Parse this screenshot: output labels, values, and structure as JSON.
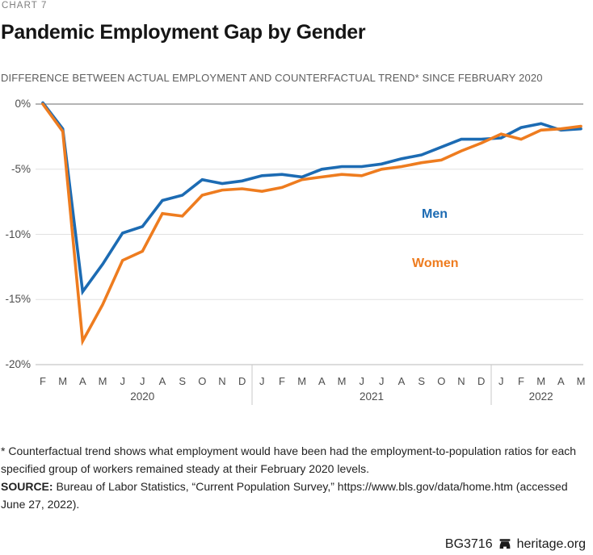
{
  "page": {
    "kicker": "CHART 7",
    "title": "Pandemic Employment Gap by Gender",
    "subtitle": "DIFFERENCE BETWEEN ACTUAL EMPLOYMENT AND COUNTERFACTUAL TREND* SINCE FEBRUARY 2020"
  },
  "chart_data": {
    "type": "line",
    "x_tick_letters": [
      "F",
      "M",
      "A",
      "M",
      "J",
      "J",
      "A",
      "S",
      "O",
      "N",
      "D",
      "J",
      "F",
      "M",
      "A",
      "M",
      "J",
      "J",
      "A",
      "S",
      "O",
      "N",
      "D",
      "J",
      "F",
      "M",
      "A",
      "M"
    ],
    "year_groups": [
      {
        "label": "2020",
        "from_index": 0,
        "to_index": 10
      },
      {
        "label": "2021",
        "from_index": 11,
        "to_index": 22
      },
      {
        "label": "2022",
        "from_index": 23,
        "to_index": 27
      }
    ],
    "yticks": [
      0,
      -5,
      -10,
      -15,
      -20
    ],
    "ytick_labels": [
      "0%",
      "-5%",
      "-10%",
      "-15%",
      "-20%"
    ],
    "ylim": [
      -20,
      0.5
    ],
    "grid": true,
    "legend_position": "inline-right",
    "series": [
      {
        "name": "Men",
        "color": "#1c6bb3",
        "values": [
          0.1,
          -1.9,
          -14.4,
          -12.3,
          -9.9,
          -9.4,
          -7.4,
          -7.0,
          -5.8,
          -6.1,
          -5.9,
          -5.5,
          -5.4,
          -5.6,
          -5.0,
          -4.8,
          -4.8,
          -4.6,
          -4.2,
          -3.9,
          -3.3,
          -2.7,
          -2.7,
          -2.6,
          -1.8,
          -1.5,
          -2.0,
          -1.9
        ]
      },
      {
        "name": "Women",
        "color": "#ee7c1f",
        "values": [
          0.0,
          -2.1,
          -18.2,
          -15.4,
          -12.0,
          -11.3,
          -8.4,
          -8.6,
          -7.0,
          -6.6,
          -6.5,
          -6.7,
          -6.4,
          -5.8,
          -5.6,
          -5.4,
          -5.5,
          -5.0,
          -4.8,
          -4.5,
          -4.3,
          -3.6,
          -3.0,
          -2.3,
          -2.7,
          -2.0,
          -1.9,
          -1.7
        ]
      }
    ]
  },
  "footnote": "* Counterfactual trend shows what employment would have been had the employment-to-population ratios for each specified group of workers remained steady at their February 2020 levels.",
  "source": {
    "label": "SOURCE:",
    "text": " Bureau of Labor Statistics, “Current Population Survey,” https://www.bls.gov/data/home.htm (accessed June 27, 2022)."
  },
  "brand": {
    "report_id": "BG3716",
    "site": "heritage.org"
  }
}
